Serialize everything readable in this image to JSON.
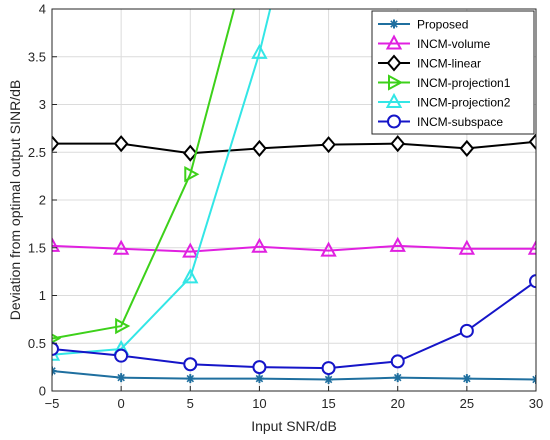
{
  "chart_data": {
    "type": "line",
    "xlabel": "Input SNR/dB",
    "ylabel": "Deviation from optimal output SINR/dB",
    "xlim": [
      -5,
      30
    ],
    "ylim": [
      0,
      4
    ],
    "x_ticks": [
      -5,
      0,
      5,
      10,
      15,
      20,
      25,
      30
    ],
    "y_ticks": [
      0,
      0.5,
      1,
      1.5,
      2,
      2.5,
      3,
      3.5,
      4
    ],
    "x_tick_labels": [
      "−5",
      "0",
      "5",
      "10",
      "15",
      "20",
      "25",
      "30"
    ],
    "y_tick_labels": [
      "0",
      "0.5",
      "1",
      "1.5",
      "2",
      "2.5",
      "3",
      "3.5",
      "4"
    ],
    "grid": true,
    "legend_position": "top-right",
    "x": [
      -5,
      0,
      5,
      10,
      15,
      20,
      25,
      30
    ],
    "series": [
      {
        "name": "Proposed",
        "color": "#1f6f9f",
        "marker": "asterisk",
        "values": [
          0.21,
          0.14,
          0.13,
          0.13,
          0.12,
          0.14,
          0.13,
          0.12
        ]
      },
      {
        "name": "INCM-volume",
        "color": "#e020e0",
        "marker": "triangle-up",
        "values": [
          1.52,
          1.49,
          1.46,
          1.51,
          1.47,
          1.52,
          1.49,
          1.49
        ]
      },
      {
        "name": "INCM-linear",
        "color": "#000000",
        "marker": "diamond",
        "values": [
          2.59,
          2.59,
          2.49,
          2.54,
          2.58,
          2.59,
          2.54,
          2.61
        ]
      },
      {
        "name": "INCM-projection1",
        "color": "#3dd11a",
        "marker": "triangle-right",
        "values": [
          0.55,
          0.68,
          2.27,
          5.0,
          null,
          null,
          null,
          null
        ]
      },
      {
        "name": "INCM-projection2",
        "color": "#33e6e6",
        "marker": "triangle-up",
        "values": [
          0.38,
          0.44,
          1.19,
          3.54,
          6.5,
          null,
          null,
          null
        ]
      },
      {
        "name": "INCM-subspace",
        "color": "#1515c8",
        "marker": "circle",
        "values": [
          0.44,
          0.37,
          0.28,
          0.25,
          0.24,
          0.31,
          0.63,
          1.15
        ]
      }
    ]
  }
}
